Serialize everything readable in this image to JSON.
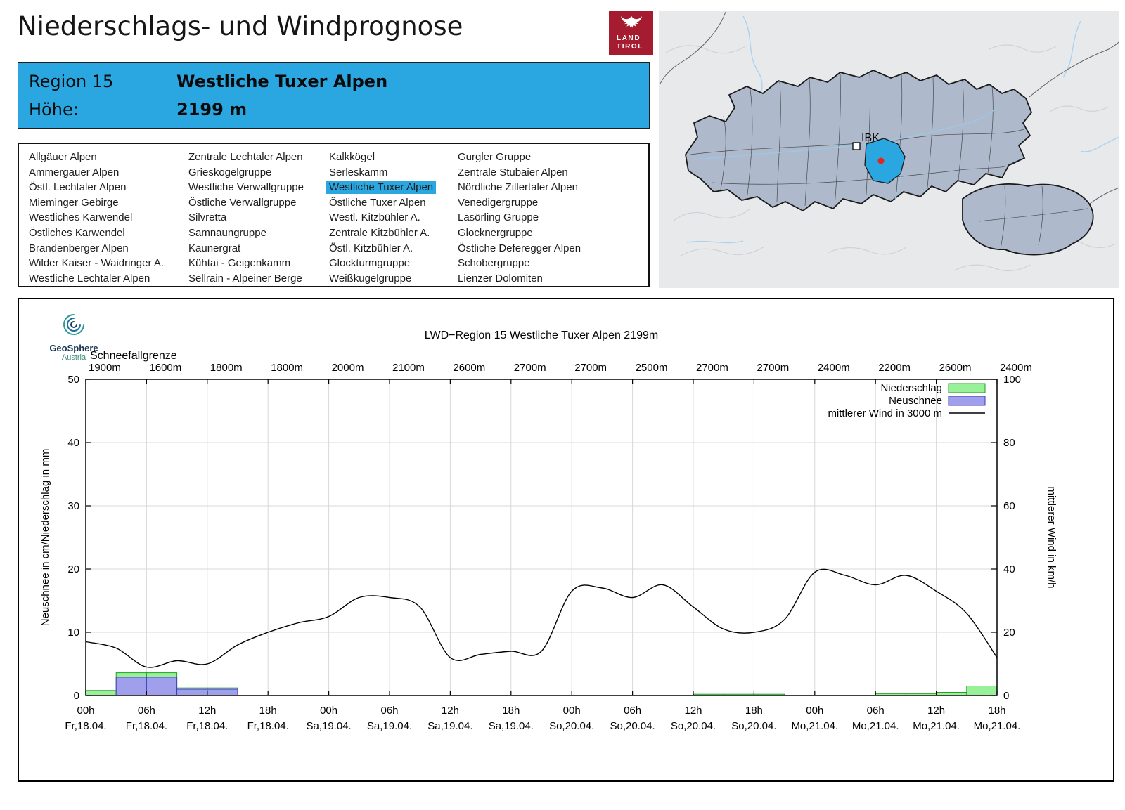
{
  "page": {
    "title": "Niederschlags- und Windprognose"
  },
  "land_tirol_logo": {
    "line1": "LAND",
    "line2": "TIROL"
  },
  "map": {
    "marker_label": "IBK"
  },
  "region_info": {
    "region_label": "Region 15",
    "region_name": "Westliche Tuxer Alpen",
    "altitude_label": "Höhe:",
    "altitude_value": "2199 m"
  },
  "region_list": {
    "selected": "Westliche Tuxer Alpen",
    "columns": [
      [
        "Allgäuer Alpen",
        "Ammergauer Alpen",
        "Östl. Lechtaler Alpen",
        "Mieminger Gebirge",
        "Westliches Karwendel",
        "Östliches Karwendel",
        "Brandenberger Alpen",
        "Wilder Kaiser - Waidringer A.",
        "Westliche Lechtaler Alpen"
      ],
      [
        "Zentrale Lechtaler Alpen",
        "Grieskogelgruppe",
        "Westliche Verwallgruppe",
        "Östliche Verwallgruppe",
        "Silvretta",
        "Samnaungruppe",
        "Kaunergrat",
        "Kühtai - Geigenkamm",
        "Sellrain - Alpeiner Berge"
      ],
      [
        "Kalkkögel",
        "Serleskamm",
        "Westliche Tuxer Alpen",
        "Östliche Tuxer Alpen",
        "Westl. Kitzbühler A.",
        "Zentrale Kitzbühler A.",
        "Östl. Kitzbühler A.",
        "Glockturmgruppe",
        "Weißkugelgruppe"
      ],
      [
        "Gurgler Gruppe",
        "Zentrale Stubaier Alpen",
        "Nördliche Zillertaler Alpen",
        "Venedigergruppe",
        "Lasörling Gruppe",
        "Glocknergruppe",
        "Östliche Deferegger Alpen",
        "Schobergruppe",
        "Lienzer Dolomiten"
      ]
    ]
  },
  "geosphere_logo": {
    "name": "GeoSphere",
    "sub": "Austria"
  },
  "colors": {
    "accent_blue": "#2AA7E1",
    "logo_red": "#A51C30",
    "precip_fill": "#98F098",
    "precip_stroke": "#1FA01F",
    "snow_fill": "#9F9FEC",
    "snow_stroke": "#3C3CB8",
    "wind_line": "#000000",
    "map_region_fill": "#AEBACC",
    "grid": "#D8D8D8"
  },
  "chart_data": {
    "type": "bar",
    "title": "LWD−Region 15 Westliche Tuxer Alpen 2199m",
    "snowline": {
      "label": "Schneefallgrenze",
      "values": [
        "1900m",
        "1600m",
        "1800m",
        "1800m",
        "2000m",
        "2100m",
        "2600m",
        "2700m",
        "2700m",
        "2500m",
        "2700m",
        "2700m",
        "2400m",
        "2200m",
        "2600m",
        "2400m"
      ]
    },
    "x_tick_times": [
      "00h",
      "06h",
      "12h",
      "18h",
      "00h",
      "06h",
      "12h",
      "18h",
      "00h",
      "06h",
      "12h",
      "18h",
      "00h",
      "06h",
      "12h",
      "18h"
    ],
    "x_tick_dates": [
      "Fr,18.04.",
      "Fr,18.04.",
      "Fr,18.04.",
      "Fr,18.04.",
      "Sa,19.04.",
      "Sa,19.04.",
      "Sa,19.04.",
      "Sa,19.04.",
      "So,20.04.",
      "So,20.04.",
      "So,20.04.",
      "So,20.04.",
      "Mo,21.04.",
      "Mo,21.04.",
      "Mo,21.04.",
      "Mo,21.04."
    ],
    "ylabel_left": "Neuschnee in cm/Niederschlag in mm",
    "ylabel_right": "mittlerer Wind in km/h",
    "ylim_left": [
      0,
      50
    ],
    "ylim_right": [
      0,
      100
    ],
    "yticks_left": [
      0,
      10,
      20,
      30,
      40,
      50
    ],
    "yticks_right": [
      0,
      20,
      40,
      60,
      80,
      100
    ],
    "legend": [
      {
        "label": "Niederschlag",
        "swatch": "box",
        "fill": "#98F098",
        "stroke": "#1FA01F"
      },
      {
        "label": "Neuschnee",
        "swatch": "box",
        "fill": "#9F9FEC",
        "stroke": "#3C3CB8"
      },
      {
        "label": "mittlerer Wind in 3000 m",
        "swatch": "line",
        "stroke": "#000000"
      }
    ],
    "hours_total": 90,
    "bar_interval_hours": 3,
    "series": {
      "niederschlag_mm": [
        0.8,
        3.6,
        3.6,
        1.2,
        1.2,
        0,
        0,
        0,
        0,
        0,
        0,
        0,
        0,
        0,
        0,
        0,
        0,
        0,
        0,
        0,
        0.2,
        0.2,
        0.2,
        0,
        0,
        0,
        0.3,
        0.3,
        0.5,
        1.5
      ],
      "neuschnee_cm": [
        0,
        2.9,
        2.9,
        1.0,
        1.0,
        0,
        0,
        0,
        0,
        0,
        0,
        0,
        0,
        0,
        0,
        0,
        0,
        0,
        0,
        0,
        0,
        0,
        0,
        0,
        0,
        0,
        0,
        0,
        0,
        0
      ],
      "wind_hours": [
        0,
        3,
        6,
        9,
        12,
        15,
        18,
        21,
        24,
        27,
        30,
        33,
        36,
        39,
        42,
        45,
        48,
        51,
        54,
        57,
        60,
        63,
        66,
        69,
        72,
        75,
        78,
        81,
        84,
        87,
        90
      ],
      "wind_kmh": [
        17,
        15,
        9,
        11,
        10,
        16,
        20,
        23,
        25,
        31,
        31,
        28,
        12,
        13,
        14,
        14,
        33,
        34,
        31,
        35,
        28,
        21,
        20,
        24,
        39,
        38,
        35,
        38,
        33,
        26,
        12
      ]
    }
  }
}
